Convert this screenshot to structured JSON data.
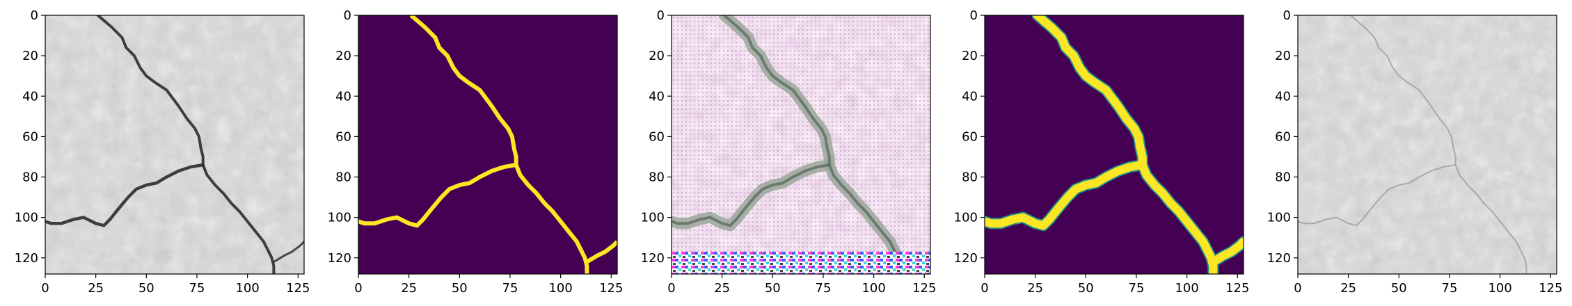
{
  "figure": {
    "panel_count": 5,
    "panels": [
      {
        "id": "input-image",
        "content": "grayscale concrete surface with crack"
      },
      {
        "id": "ground-truth-mask",
        "content": "yellow crack mask on dark purple background"
      },
      {
        "id": "generated-image",
        "content": "pink noisy concrete texture with crack"
      },
      {
        "id": "predicted-mask",
        "content": "smooth yellow crack mask on dark purple background"
      },
      {
        "id": "reconstructed-image",
        "content": "grayscale concrete surface with faint crack"
      }
    ]
  },
  "chart_data": {
    "type": "image-grid",
    "xlim": [
      0,
      128
    ],
    "ylim": [
      128,
      0
    ],
    "x_ticks": [
      "0",
      "25",
      "50",
      "75",
      "100",
      "125"
    ],
    "y_ticks": [
      "0",
      "20",
      "40",
      "60",
      "80",
      "100",
      "120"
    ],
    "x_tick_values": [
      0,
      25,
      50,
      75,
      100,
      125
    ],
    "y_tick_values": [
      0,
      20,
      40,
      60,
      80,
      100,
      120
    ],
    "colors": {
      "mask_background": "#440154",
      "mask_crack": "#fde725",
      "mask_edge": "#21918c",
      "concrete_light": "#d3d3d1",
      "concrete_dark": "#8f928f",
      "generated_tint": "#e9c6e3"
    }
  }
}
